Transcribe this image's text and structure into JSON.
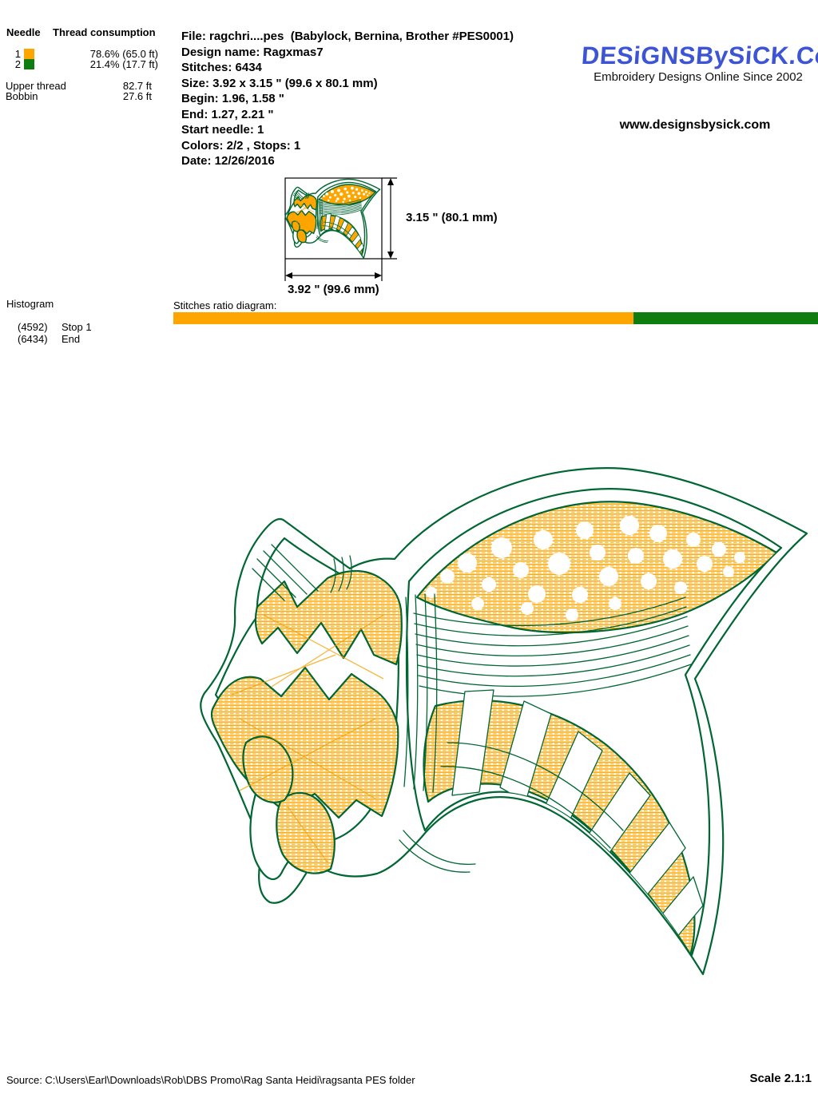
{
  "palette": {
    "orange": "#FFA500",
    "design_green": "#006633",
    "bar_green": "#0E7C0E",
    "logo_blue": "#3D55D4"
  },
  "needle_table": {
    "header_needle": "Needle",
    "header_thread": "Thread consumption",
    "rows": [
      {
        "needle": "1",
        "color": "#FFA500",
        "consumption": "78.6% (65.0 ft)"
      },
      {
        "needle": "2",
        "color": "#0E7C0E",
        "consumption": "21.4% (17.7 ft)"
      }
    ],
    "upper_thread_label": "Upper thread",
    "upper_thread_value": "82.7 ft",
    "bobbin_label": "Bobbin",
    "bobbin_value": "27.6 ft"
  },
  "file_info": {
    "lines": [
      "File: ragchri....pes  (Babylock, Bernina, Brother #PES0001)",
      "Design name: Ragxmas7",
      "Stitches: 6434",
      "Size: 3.92 x 3.15 \" (99.6 x 80.1 mm)",
      "Begin: 1.96, 1.58 \"",
      "End: 1.27, 2.21 \"",
      "Start needle: 1",
      "Colors: 2/2 , Stops: 1",
      "Date: 12/26/2016"
    ]
  },
  "brand": {
    "logo": "DESiGNSBySiCK.CoM",
    "tagline": "Embroidery Designs Online Since 2002",
    "website": "www.designsbysick.com"
  },
  "thumbnail": {
    "width_label": "3.92 \" (99.6 mm)",
    "height_label": "3.15 \" (80.1 mm)"
  },
  "histogram": {
    "title": "Histogram",
    "entries": [
      {
        "count": "(4592)",
        "label": "Stop 1"
      },
      {
        "count": "(6434)",
        "label": "End"
      }
    ]
  },
  "stitch_ratio": {
    "label": "Stitches ratio diagram:",
    "total_stitches": 6434,
    "segments": [
      {
        "name": "color 1",
        "color": "#FFA500",
        "stitches": 4592,
        "fraction": 0.7137
      },
      {
        "name": "color 2",
        "color": "#0E7C0E",
        "stitches": 1842,
        "fraction": 0.2863
      }
    ]
  },
  "footer": {
    "source": "Source: C:\\Users\\Earl\\Downloads\\Rob\\DBS Promo\\Rag Santa Heidi\\ragsanta PES folder",
    "scale": "Scale 2.1:1"
  }
}
